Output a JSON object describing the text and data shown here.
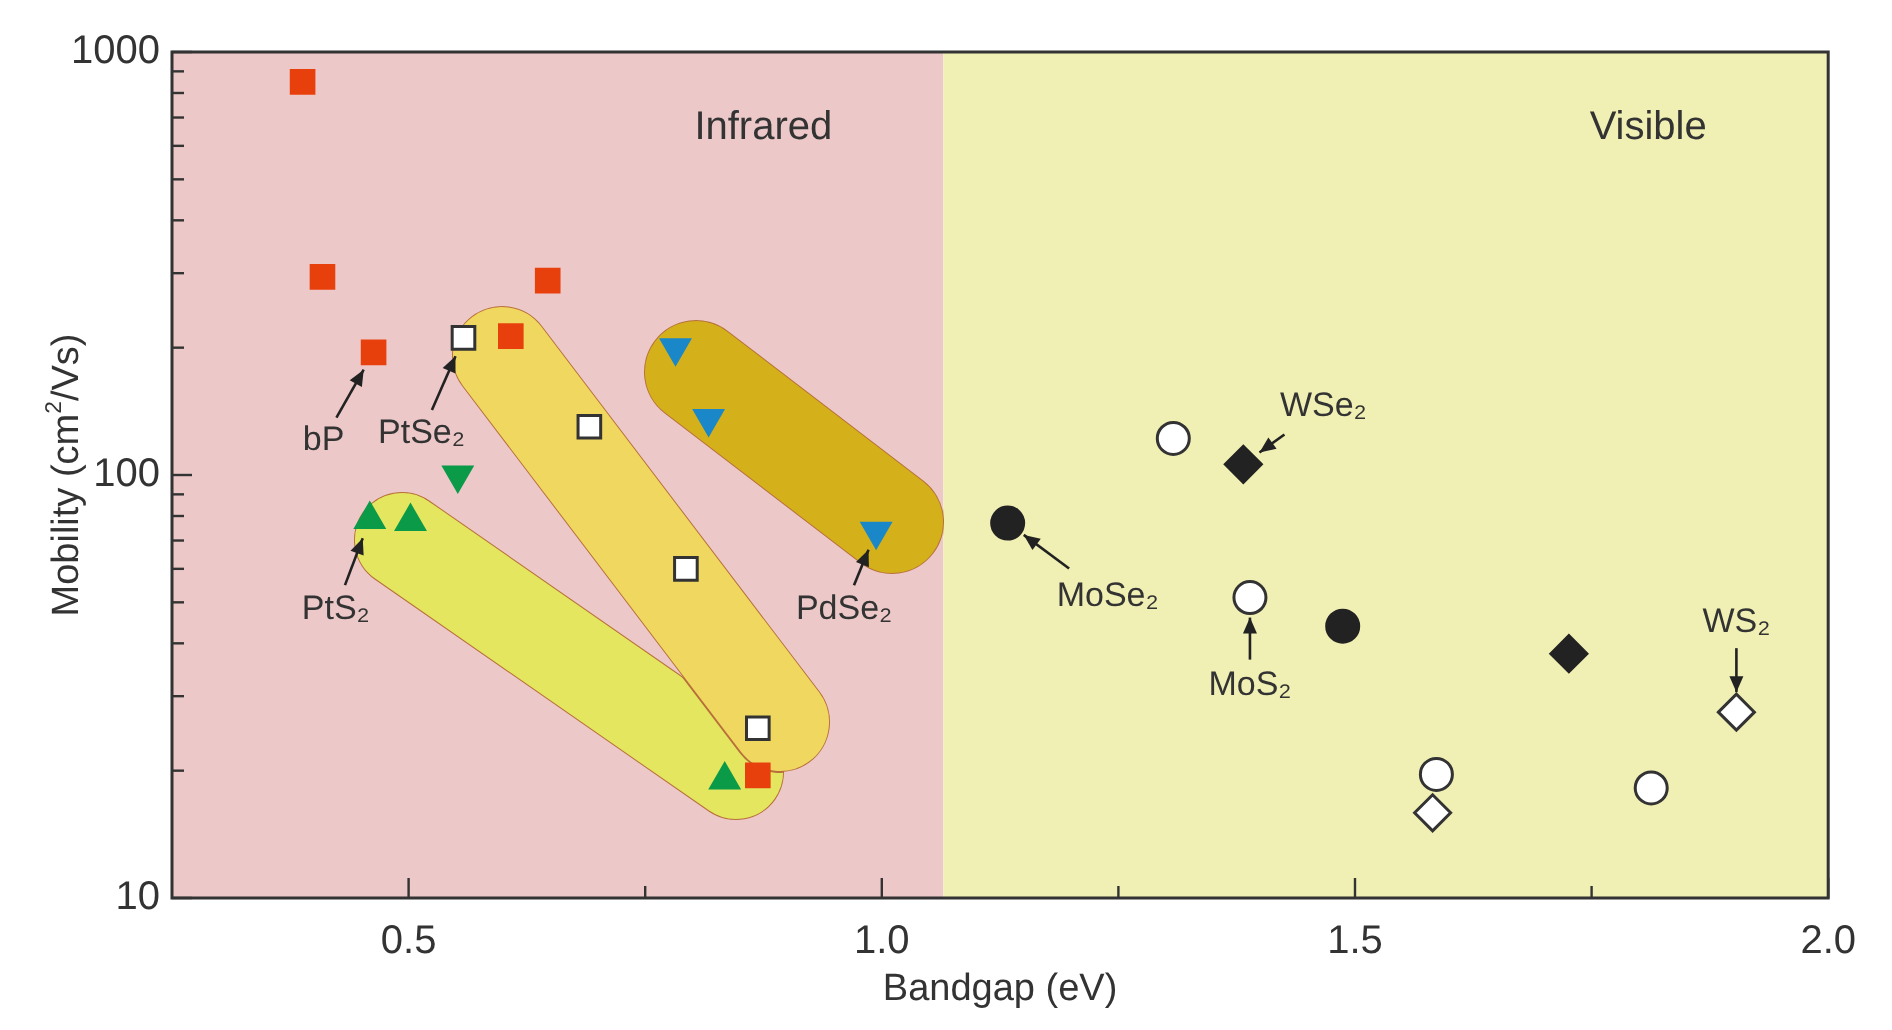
{
  "chart_data": {
    "type": "scatter",
    "xlabel": "Bandgap (eV)",
    "ylabel": "Mobility (cm$^{2}$/Vs)",
    "log": "y",
    "grid": false,
    "legend": false,
    "xlim": [
      0.25,
      2.0
    ],
    "xticks": [
      0.5,
      {
        "value": 0.75,
        "label": null
      },
      {
        "value": 1,
        "label": "1.0"
      },
      {
        "value": 1.25,
        "label": null
      },
      1.5,
      {
        "value": 1.75,
        "label": null
      },
      {
        "value": 2,
        "label": "2.0"
      }
    ],
    "ylim": [
      10,
      1000
    ],
    "yticks": [
      10,
      {
        "value": 20,
        "label": null
      },
      {
        "value": 30,
        "label": null
      },
      {
        "value": 40,
        "label": null
      },
      {
        "value": 50,
        "label": null
      },
      {
        "value": 60,
        "label": null
      },
      {
        "value": 70,
        "label": null
      },
      {
        "value": 80,
        "label": null
      },
      {
        "value": 90,
        "label": null
      },
      100,
      {
        "value": 200,
        "label": null
      },
      {
        "value": 300,
        "label": null
      },
      {
        "value": 400,
        "label": null
      },
      {
        "value": 500,
        "label": null
      },
      {
        "value": 600,
        "label": null
      },
      {
        "value": 700,
        "label": null
      },
      {
        "value": 800,
        "label": null
      },
      {
        "value": 900,
        "label": null
      },
      1000
    ],
    "bands": [
      {
        "axis": "x",
        "from": 0.25,
        "to": 1.065,
        "label": "Infrared",
        "color": "#ecc8c8"
      },
      {
        "axis": "x",
        "from": 1.065,
        "to": 2.0,
        "label": "Visible",
        "color": "#f0efb4"
      }
    ],
    "series": [
      {
        "color": "#e8400c",
        "marker": "square",
        "x": [
          0.388,
          0.409,
          0.463,
          0.608,
          0.647,
          0.869
        ],
        "values": [
          850,
          294,
          195,
          213,
          288,
          19.5
        ]
      },
      {
        "color": "#ffffff",
        "marker": "square",
        "x": [
          0.558,
          0.691,
          0.793,
          0.869
        ],
        "values": [
          211,
          130,
          60,
          25.2
        ]
      },
      {
        "color": "#1a88c8",
        "marker": "triangle-down",
        "x": [
          0.782,
          0.817,
          0.994
        ],
        "values": [
          200,
          136,
          73.6
        ]
      },
      {
        "color": "#0a9a48",
        "marker": "triangle-down",
        "x": [
          0.552
        ],
        "values": [
          100
        ]
      },
      {
        "color": "#0a9a48",
        "marker": "triangle",
        "x": [
          0.459,
          0.502,
          0.834
        ],
        "values": [
          78.5,
          77.6,
          19.0
        ]
      },
      {
        "color": "#222222",
        "marker": "circle",
        "x": [
          1.133,
          1.487
        ],
        "values": [
          77,
          43.9
        ]
      },
      {
        "color": "#ffffff",
        "marker": "circle",
        "x": [
          1.308,
          1.389,
          1.586,
          1.813
        ],
        "values": [
          122,
          51.3,
          19.6,
          18.2
        ]
      },
      {
        "color": "#222222",
        "marker": "diamond",
        "x": [
          1.382,
          1.726
        ],
        "values": [
          106,
          37.8
        ]
      },
      {
        "color": "#ffffff",
        "marker": "diamond",
        "x": [
          1.903,
          1.582
        ],
        "values": [
          27.5,
          15.9
        ]
      }
    ],
    "annotations": [
      {
        "text": "bP",
        "x": 0.463,
        "y": 195
      },
      {
        "text": "PtSe₂",
        "x": 0.558,
        "y": 211
      },
      {
        "text": "PtS₂",
        "x": 0.459,
        "y": 78.5
      },
      {
        "text": "PdSe₂",
        "x": 0.994,
        "y": 73.6
      },
      {
        "text": "MoSe₂",
        "x": 1.133,
        "y": 77
      },
      {
        "text": "MoS₂",
        "x": 1.389,
        "y": 51.3
      },
      {
        "text": "WSe₂",
        "x": 1.382,
        "y": 106
      },
      {
        "text": "WS₂",
        "x": 1.903,
        "y": 27.5
      }
    ]
  }
}
